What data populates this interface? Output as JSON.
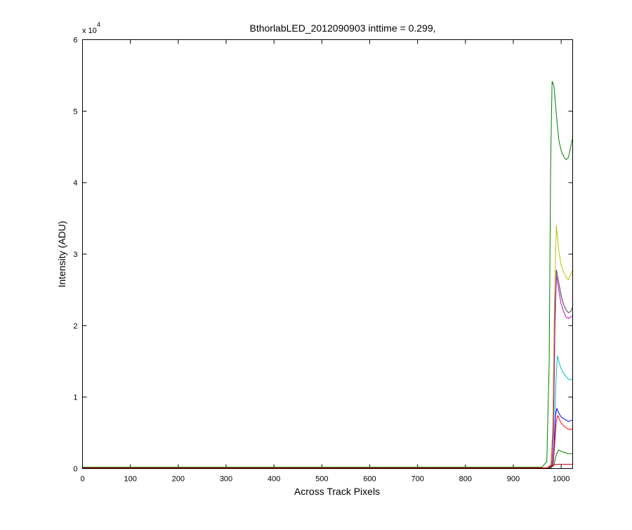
{
  "chart_data": {
    "type": "line",
    "title": "BthorlabLED_2012090903 inttime = 0.299,",
    "xlabel": "Across Track Pixels",
    "ylabel": "Intensity (ADU)",
    "y_multiplier_label": {
      "base": "x 10",
      "exponent": "4"
    },
    "xlim": [
      0,
      1024
    ],
    "ylim": [
      0,
      6
    ],
    "xticks": [
      0,
      100,
      200,
      300,
      400,
      500,
      600,
      700,
      800,
      900,
      1000
    ],
    "yticks": [
      0,
      1,
      2,
      3,
      4,
      5,
      6
    ],
    "grid": false,
    "legend": "none",
    "series": [
      {
        "color": "#007f00",
        "x": [
          0,
          960,
          970,
          975,
          978,
          981,
          985,
          990,
          995,
          1000,
          1005,
          1010,
          1015,
          1020,
          1024
        ],
        "y": [
          0.02,
          0.02,
          0.1,
          1.5,
          4.2,
          5.42,
          5.35,
          4.95,
          4.6,
          4.45,
          4.37,
          4.32,
          4.35,
          4.5,
          4.63
        ]
      },
      {
        "color": "#bfbf00",
        "x": [
          0,
          970,
          978,
          982,
          986,
          990,
          995,
          1000,
          1005,
          1010,
          1015,
          1020,
          1024
        ],
        "y": [
          0.01,
          0.01,
          0.06,
          0.5,
          2.4,
          3.4,
          3.05,
          2.85,
          2.75,
          2.68,
          2.64,
          2.72,
          2.78
        ]
      },
      {
        "color": "#404040",
        "x": [
          0,
          972,
          980,
          984,
          987,
          990,
          995,
          1000,
          1005,
          1010,
          1015,
          1020,
          1024
        ],
        "y": [
          0.01,
          0.01,
          0.05,
          0.6,
          2.2,
          2.78,
          2.6,
          2.42,
          2.3,
          2.22,
          2.18,
          2.2,
          2.26
        ]
      },
      {
        "color": "#bf00bf",
        "x": [
          0,
          972,
          980,
          984,
          987,
          990,
          995,
          1000,
          1005,
          1010,
          1015,
          1020,
          1024
        ],
        "y": [
          0.01,
          0.01,
          0.05,
          0.5,
          2.0,
          2.7,
          2.5,
          2.3,
          2.2,
          2.12,
          2.1,
          2.12,
          2.14
        ]
      },
      {
        "color": "#00bfbf",
        "x": [
          0,
          974,
          982,
          986,
          989,
          992,
          996,
          1000,
          1005,
          1010,
          1015,
          1020,
          1024
        ],
        "y": [
          0.01,
          0.01,
          0.04,
          0.3,
          1.2,
          1.58,
          1.48,
          1.4,
          1.33,
          1.29,
          1.25,
          1.24,
          1.26
        ]
      },
      {
        "color": "#0000ff",
        "x": [
          0,
          975,
          982,
          985,
          988,
          991,
          995,
          1000,
          1005,
          1010,
          1015,
          1020,
          1024
        ],
        "y": [
          0.01,
          0.01,
          0.05,
          0.3,
          0.75,
          0.84,
          0.78,
          0.72,
          0.7,
          0.68,
          0.66,
          0.67,
          0.68
        ]
      },
      {
        "color": "#ff0000",
        "x": [
          0,
          976,
          983,
          987,
          990,
          993,
          996,
          1000,
          1005,
          1010,
          1015,
          1020,
          1024
        ],
        "y": [
          0.01,
          0.01,
          0.05,
          0.4,
          0.68,
          0.74,
          0.69,
          0.64,
          0.6,
          0.57,
          0.55,
          0.55,
          0.56
        ]
      },
      {
        "color": "#007f00",
        "x": [
          0,
          978,
          985,
          990,
          995,
          1000,
          1005,
          1010,
          1015,
          1020,
          1024
        ],
        "y": [
          0.005,
          0.005,
          0.05,
          0.2,
          0.26,
          0.24,
          0.23,
          0.22,
          0.21,
          0.21,
          0.21
        ]
      },
      {
        "color": "#cc0000",
        "x": [
          0,
          975,
          980,
          985,
          990,
          1000,
          1010,
          1020,
          1024
        ],
        "y": [
          0.005,
          0.005,
          0.03,
          0.05,
          0.06,
          0.06,
          0.06,
          0.06,
          0.06
        ]
      }
    ]
  }
}
